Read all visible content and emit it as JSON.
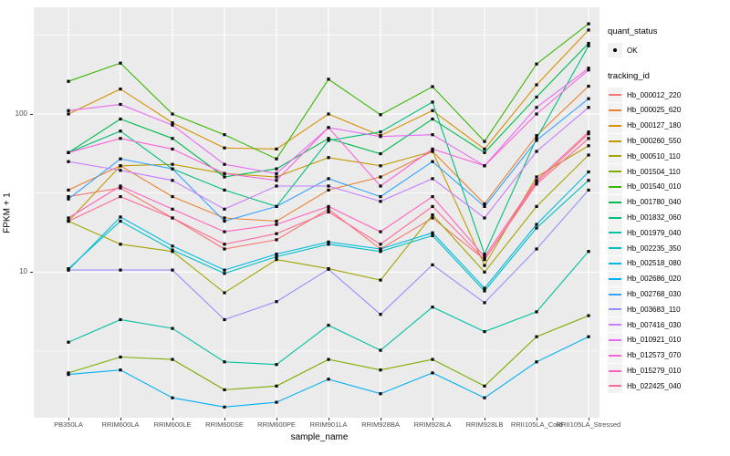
{
  "panel": {
    "bg_color": "#EBEBEB",
    "grid_color": "#FFFFFF",
    "legend_key_bg": "#F2F2F2",
    "tick_text_color": "#4D4D4D",
    "marker_color": "#000000"
  },
  "chart_data": {
    "type": "line",
    "title": "",
    "xlabel": "sample_name",
    "ylabel": "FPKM + 1",
    "y_scale": "log10",
    "ylim": [
      1.2,
      470
    ],
    "grid": "on",
    "legend_position": "right",
    "y_major_gridlines": [
      100,
      10
    ],
    "y_minor_gridlines": [
      316.2,
      31.62,
      3.162
    ],
    "marker": "point",
    "categories": [
      "PB350LA",
      "RRIM600LA",
      "RRIM600LE",
      "RRIM600SE",
      "RRIM600PE",
      "RRIM901LA",
      "RRIM928BA",
      "RRIM928LA",
      "RRIM928LB",
      "RRII105LA_Cold",
      "RRII105LA_Stressed"
    ],
    "legend": {
      "quant_status_title": "quant_status",
      "ok_label": "OK",
      "tracking_title": "tracking_id"
    },
    "series": [
      {
        "name": "Hb_000012_220",
        "color": "#F8766D",
        "values": [
          30,
          34,
          22,
          14,
          16,
          25,
          14,
          22,
          12,
          37,
          75
        ]
      },
      {
        "name": "Hb_000025_620",
        "color": "#EA8331",
        "values": [
          33,
          47,
          30,
          22,
          21,
          33,
          40,
          58,
          27,
          73,
          150
        ]
      },
      {
        "name": "Hb_000127_180",
        "color": "#D89000",
        "values": [
          100,
          144,
          88,
          61,
          60,
          100,
          73,
          105,
          60,
          153,
          340
        ]
      },
      {
        "name": "Hb_000260_550",
        "color": "#C09B00",
        "values": [
          21,
          47,
          48,
          42,
          40,
          53,
          47,
          58,
          11,
          40,
          63
        ]
      },
      {
        "name": "Hb_000510_110",
        "color": "#A3A500",
        "values": [
          21,
          15,
          13.5,
          7.4,
          12,
          10.5,
          8.9,
          23,
          10,
          26,
          55
        ]
      },
      {
        "name": "Hb_001504_110",
        "color": "#7CAE00",
        "values": [
          2.3,
          2.9,
          2.8,
          1.8,
          1.9,
          2.8,
          2.4,
          2.8,
          1.9,
          3.9,
          5.3
        ]
      },
      {
        "name": "Hb_001540_010",
        "color": "#39B600",
        "values": [
          161,
          210,
          100,
          74,
          52,
          166,
          99,
          149,
          67,
          207,
          372
        ]
      },
      {
        "name": "Hb_001780_040",
        "color": "#00BB4E",
        "values": [
          57,
          93,
          70,
          40,
          45,
          70,
          56,
          93,
          57,
          128,
          280
        ]
      },
      {
        "name": "Hb_001832_060",
        "color": "#00BF7D",
        "values": [
          57,
          78,
          45,
          33,
          26,
          68,
          77,
          119,
          13,
          70,
          270
        ]
      },
      {
        "name": "Hb_001979_040",
        "color": "#00C1A3",
        "values": [
          3.6,
          5,
          4.4,
          2.7,
          2.6,
          4.6,
          3.2,
          6,
          4.2,
          5.6,
          13.5
        ]
      },
      {
        "name": "Hb_002235_350",
        "color": "#00BFC4",
        "values": [
          10.5,
          21,
          13.8,
          9.8,
          12.5,
          15,
          13.5,
          17,
          7.6,
          19,
          38
        ]
      },
      {
        "name": "Hb_002518_080",
        "color": "#00BAE0",
        "values": [
          10.3,
          22.3,
          14.6,
          10.3,
          13,
          15.5,
          14,
          17.7,
          7.9,
          20,
          43
        ]
      },
      {
        "name": "Hb_002686_020",
        "color": "#00B0F6",
        "values": [
          2.25,
          2.4,
          1.6,
          1.4,
          1.5,
          2.1,
          1.7,
          2.3,
          1.6,
          2.7,
          3.9
        ]
      },
      {
        "name": "Hb_002768_030",
        "color": "#35A2FF",
        "values": [
          29,
          52,
          45,
          21,
          26,
          39,
          30,
          50,
          26,
          68,
          125
        ]
      },
      {
        "name": "Hb_003683_110",
        "color": "#9590FF",
        "values": [
          10.3,
          10.3,
          10.3,
          5,
          6.5,
          10.4,
          5.4,
          11.1,
          6.4,
          14,
          33
        ]
      },
      {
        "name": "Hb_007416_030",
        "color": "#C77CFF",
        "values": [
          50,
          44,
          38,
          25,
          35,
          35,
          28,
          39,
          22,
          58,
          110
        ]
      },
      {
        "name": "Hb_010921_010",
        "color": "#E76BF3",
        "values": [
          105,
          115,
          85,
          48,
          42,
          82,
          72,
          74,
          47,
          110,
          195
        ]
      },
      {
        "name": "Hb_012573_070",
        "color": "#FA62DB",
        "values": [
          57,
          70,
          60,
          42,
          38,
          82,
          35,
          60,
          47,
          100,
          190
        ]
      },
      {
        "name": "Hb_015279_010",
        "color": "#FF62BC",
        "values": [
          22,
          35,
          25,
          18,
          20,
          26,
          18,
          30,
          12.5,
          38,
          77
        ]
      },
      {
        "name": "Hb_022425_040",
        "color": "#FF6A98",
        "values": [
          21,
          30,
          22,
          15,
          17.5,
          24,
          15,
          26,
          12,
          36,
          70
        ]
      }
    ]
  }
}
